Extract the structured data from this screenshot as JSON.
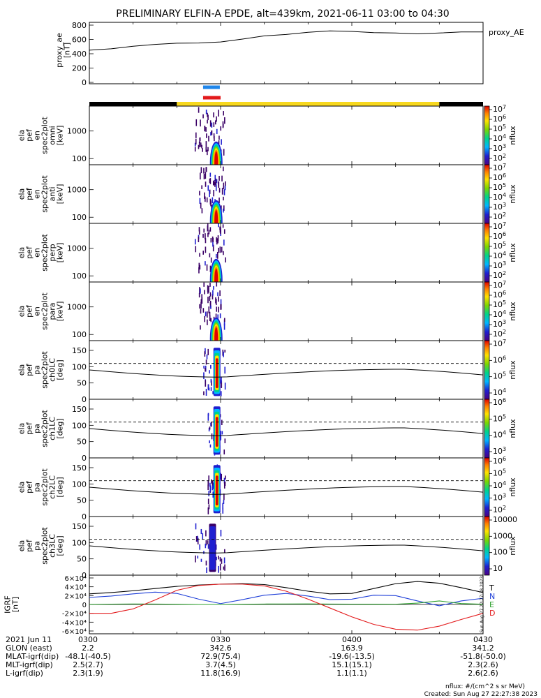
{
  "title": "PRELIMINARY ELFIN-A EPDE, alt=439km, 2021-06-11 03:00 to 04:30",
  "time_range": [
    "03:00",
    "04:30"
  ],
  "chart_data": [
    {
      "type": "line",
      "ylabel": "proxy_ae [nT]",
      "legend": "proxy_AE",
      "ylim": [
        0,
        800
      ],
      "yticks": [
        0,
        200,
        400,
        600,
        800
      ],
      "x": [
        "03:00",
        "03:05",
        "03:10",
        "03:15",
        "03:20",
        "03:25",
        "03:30",
        "03:35",
        "03:40",
        "03:45",
        "03:50",
        "03:55",
        "04:00",
        "04:05",
        "04:10",
        "04:15",
        "04:20",
        "04:25",
        "04:30"
      ],
      "values": [
        450,
        470,
        505,
        530,
        548,
        550,
        565,
        605,
        650,
        670,
        700,
        720,
        712,
        695,
        690,
        678,
        690,
        705,
        705
      ]
    },
    {
      "type": "bar",
      "name": "orbit indicator bars",
      "blue_bar": [
        "03:26",
        "03:30"
      ],
      "red_bar": [
        "03:26",
        "03:30"
      ],
      "colors": {
        "blue": "#1f86ea",
        "red": "#e31a1c"
      },
      "orbit_segments": [
        {
          "start": "03:00",
          "end": "03:20",
          "color": "#000000"
        },
        {
          "start": "03:20",
          "end": "04:20",
          "color": "#f7d81f"
        },
        {
          "start": "04:20",
          "end": "04:30",
          "color": "#000000"
        }
      ]
    },
    {
      "type": "heatmap",
      "ylabel": "ela pef en spec2plot omni [keV]",
      "zlabel": "nflux",
      "yscale": "log",
      "yticks": [
        100,
        1000
      ],
      "ylim": [
        60,
        8000
      ],
      "zticks": [
        "10^7",
        "10^6",
        "10^5",
        "10^4",
        "10^3",
        "10^2"
      ],
      "burst": {
        "start": "03:24",
        "peak": "03:29",
        "end": "03:31"
      }
    },
    {
      "type": "heatmap",
      "ylabel": "ela pef en spec2plot anti [keV]",
      "zlabel": "nflux",
      "yscale": "log",
      "yticks": [
        100,
        1000
      ],
      "ylim": [
        60,
        8000
      ],
      "zticks": [
        "10^7",
        "10^6",
        "10^5",
        "10^4",
        "10^3",
        "10^2"
      ],
      "burst": {
        "start": "03:25",
        "peak": "03:29",
        "end": "03:31"
      }
    },
    {
      "type": "heatmap",
      "ylabel": "ela pef en spec2plot perp [keV]",
      "zlabel": "nflux",
      "yscale": "log",
      "yticks": [
        100,
        1000
      ],
      "ylim": [
        60,
        8000
      ],
      "zticks": [
        "10^7",
        "10^6",
        "10^5",
        "10^4",
        "10^3",
        "10^2"
      ],
      "burst": {
        "start": "03:24",
        "peak": "03:29",
        "end": "03:31"
      }
    },
    {
      "type": "heatmap",
      "ylabel": "ela pef en spec2plot para [keV]",
      "zlabel": "nflux",
      "yscale": "log",
      "yticks": [
        100,
        1000
      ],
      "ylim": [
        60,
        8000
      ],
      "zticks": [
        "10^7",
        "10^6",
        "10^5",
        "10^4",
        "10^3",
        "10^2"
      ],
      "burst": {
        "start": "03:25",
        "peak": "03:29",
        "end": "03:31"
      }
    },
    {
      "type": "heatmap",
      "ylabel": "ela pef pa spec2plot ch0LC [deg]",
      "zlabel": "nflux",
      "ylim": [
        0,
        180
      ],
      "yticks": [
        0,
        50,
        100,
        150
      ],
      "zticks": [
        "10^7",
        "10^6",
        "10^5",
        "10^4"
      ],
      "dashed_ref": 110,
      "burst": {
        "start": "03:26",
        "peak": "03:29",
        "end": "03:31"
      }
    },
    {
      "type": "heatmap",
      "ylabel": "ela pef pa spec2plot ch1LC [deg]",
      "zlabel": "nflux",
      "ylim": [
        0,
        180
      ],
      "yticks": [
        0,
        50,
        100,
        150
      ],
      "zticks": [
        "10^6",
        "10^5",
        "10^4",
        "10^3"
      ],
      "dashed_ref": 110,
      "burst": {
        "start": "03:27",
        "peak": "03:29",
        "end": "03:31"
      }
    },
    {
      "type": "heatmap",
      "ylabel": "ela pef pa spec2plot ch2LC [deg]",
      "zlabel": "nflux",
      "ylim": [
        0,
        180
      ],
      "yticks": [
        0,
        50,
        100,
        150
      ],
      "zticks": [
        "10^6",
        "10^5",
        "10^4",
        "10^3",
        "10^2"
      ],
      "dashed_ref": 110,
      "burst": {
        "start": "03:27",
        "peak": "03:29",
        "end": "03:31"
      }
    },
    {
      "type": "heatmap",
      "ylabel": "ela pef pa spec2plot ch3LC [deg]",
      "zlabel": "nflux",
      "ylim": [
        0,
        180
      ],
      "yticks": [
        0,
        50,
        100,
        150
      ],
      "zticks": [
        "10000",
        "1000",
        "100",
        "10"
      ],
      "dashed_ref": 110,
      "burst": {
        "start": "03:24",
        "peak": "03:28",
        "end": "03:31"
      }
    },
    {
      "type": "line",
      "ylabel": "IGRF [nT]",
      "ylim": [
        -60000,
        60000
      ],
      "yticks": [
        -60000,
        -40000,
        -20000,
        0,
        20000,
        40000,
        60000
      ],
      "ytick_labels": [
        "-6×10⁴",
        "-4×10⁴",
        "-2×10⁴",
        "0",
        "2×10⁴",
        "4×10⁴",
        "6×10⁴"
      ],
      "x": [
        "03:00",
        "03:05",
        "03:10",
        "03:15",
        "03:20",
        "03:25",
        "03:30",
        "03:35",
        "03:40",
        "03:45",
        "03:50",
        "03:55",
        "04:00",
        "04:05",
        "04:10",
        "04:15",
        "04:20",
        "04:25",
        "04:30"
      ],
      "series": [
        {
          "name": "T",
          "color": "#000000",
          "values": [
            24000,
            27000,
            31000,
            36000,
            41000,
            44000,
            46000,
            47000,
            45000,
            38000,
            30000,
            24000,
            25000,
            36000,
            47000,
            52000,
            48000,
            38000,
            27000
          ]
        },
        {
          "name": "N",
          "color": "#1f3fd8",
          "values": [
            16000,
            19000,
            24000,
            28000,
            25000,
            12000,
            2000,
            11000,
            21000,
            25000,
            19000,
            11000,
            12000,
            21000,
            20000,
            8000,
            -3000,
            8000,
            14000
          ]
        },
        {
          "name": "E",
          "color": "#2ca02c",
          "values": [
            200,
            800,
            1200,
            1000,
            500,
            0,
            0,
            500,
            1000,
            1200,
            1300,
            1000,
            800,
            700,
            600,
            3000,
            8000,
            2000,
            500
          ]
        },
        {
          "name": "D",
          "color": "#e31a1c",
          "values": [
            -20000,
            -20000,
            -10000,
            10000,
            32000,
            43000,
            46000,
            46000,
            42000,
            30000,
            12000,
            -8000,
            -28000,
            -45000,
            -56000,
            -58000,
            -49000,
            -34000,
            -20000
          ]
        }
      ]
    }
  ],
  "footer": {
    "rows": [
      {
        "label": "2021 Jun 11",
        "values": [
          "0300",
          "0330",
          "0400",
          "0430"
        ]
      },
      {
        "label": "GLON (east)",
        "values": [
          "2.2",
          "342.6",
          "163.9",
          "341.2"
        ]
      },
      {
        "label": "MLAT-igrf(dip)",
        "values": [
          "-48.1(-40.5)",
          "72.9(75.4)",
          "-19.6(-13.5)",
          "-51.8(-50.0)"
        ]
      },
      {
        "label": "MLT-igrf(dip)",
        "values": [
          "2.5(2.7)",
          "3.7(4.5)",
          "15.1(15.1)",
          "2.3(2.6)"
        ]
      },
      {
        "label": "L-igrf(dip)",
        "values": [
          "2.3(1.9)",
          "11.8(16.9)",
          "1.1(1.1)",
          "2.6(2.6)"
        ]
      }
    ],
    "units_note": "nflux: #/(cm^2 s sr MeV)",
    "created": "Created: Sun Aug 27 22:27:38 2023",
    "side_stamp": "Sun Aug 27 22:27:38 2023"
  }
}
